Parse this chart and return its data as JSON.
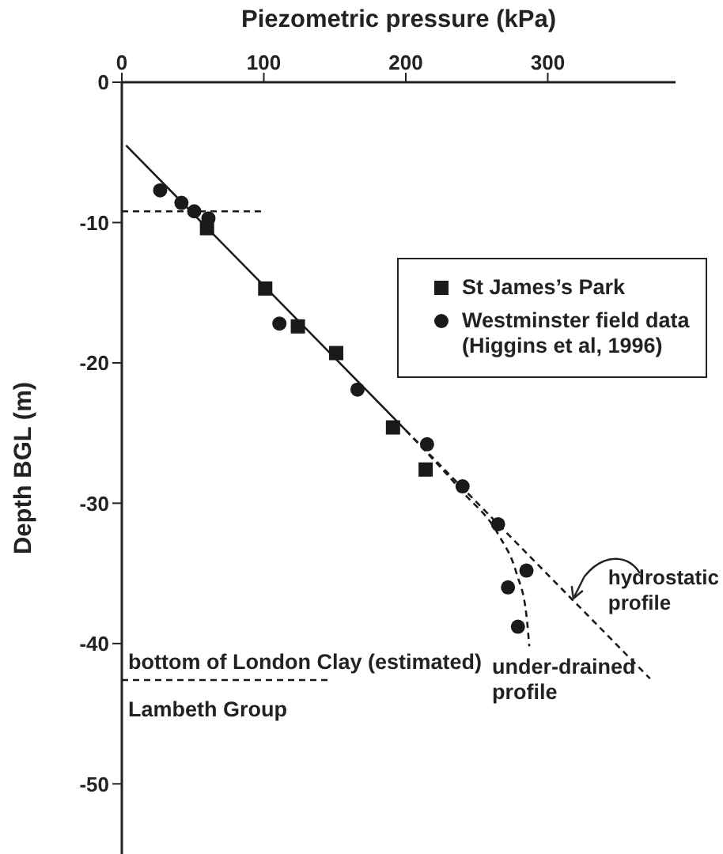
{
  "chart_data": {
    "type": "scatter",
    "xlabel": "Piezometric pressure (kPa)",
    "ylabel": "Depth BGL (m)",
    "xlim": [
      0,
      390
    ],
    "xticks": [
      0,
      100,
      200,
      300
    ],
    "ylim": [
      -55,
      0
    ],
    "yticks": [
      0,
      -10,
      -20,
      -30,
      -40,
      -50
    ],
    "legend": "top right",
    "series": [
      {
        "name": "St James’s Park",
        "marker": "square",
        "color": "#1a1a1a",
        "x": [
          60,
          101,
          124,
          151,
          191,
          214
        ],
        "values": [
          -10.4,
          -14.7,
          -17.4,
          -19.3,
          -24.6,
          -27.6
        ]
      },
      {
        "name": "Westminster field data\n(Higgins et al, 1996)",
        "marker": "circle",
        "color": "#1a1a1a",
        "x": [
          27,
          42,
          51,
          61,
          111,
          166,
          215,
          240,
          265,
          285,
          272,
          279
        ],
        "values": [
          -7.7,
          -8.6,
          -9.2,
          -9.7,
          -17.2,
          -21.9,
          -25.8,
          -28.8,
          -31.5,
          -34.8,
          -36.0,
          -38.8
        ]
      },
      {
        "type": "line",
        "line_style": "solid",
        "marker": "none",
        "color": "#1a1a1a",
        "x": [
          3,
          200
        ],
        "values": [
          -4.5,
          -24.8
        ]
      },
      {
        "type": "line",
        "line_style": "dashed",
        "marker": "none",
        "color": "#1a1a1a",
        "x": [
          200,
          372
        ],
        "values": [
          -24.8,
          -42.5
        ]
      },
      {
        "type": "line",
        "line_style": "dashed",
        "marker": "none",
        "color": "#1a1a1a",
        "x": [
          200,
          240,
          265,
          278,
          285,
          287
        ],
        "values": [
          -24.8,
          -29.2,
          -32.2,
          -35,
          -38,
          -40.2
        ]
      },
      {
        "type": "line",
        "line_style": "dashed",
        "marker": "none",
        "color": "#1a1a1a",
        "x": [
          0,
          98
        ],
        "values": [
          -9.2,
          -9.2
        ]
      },
      {
        "type": "line",
        "line_style": "dashed",
        "marker": "none",
        "color": "#1a1a1a",
        "x": [
          0,
          148
        ],
        "values": [
          -42.6,
          -42.6
        ]
      }
    ],
    "annotations": [
      {
        "text": "hydrostatic\nprofile",
        "x": 318,
        "y": -36.8
      },
      "under-drained\nprofile",
      "bottom of London Clay (estimated)",
      "Lambeth Group"
    ]
  }
}
